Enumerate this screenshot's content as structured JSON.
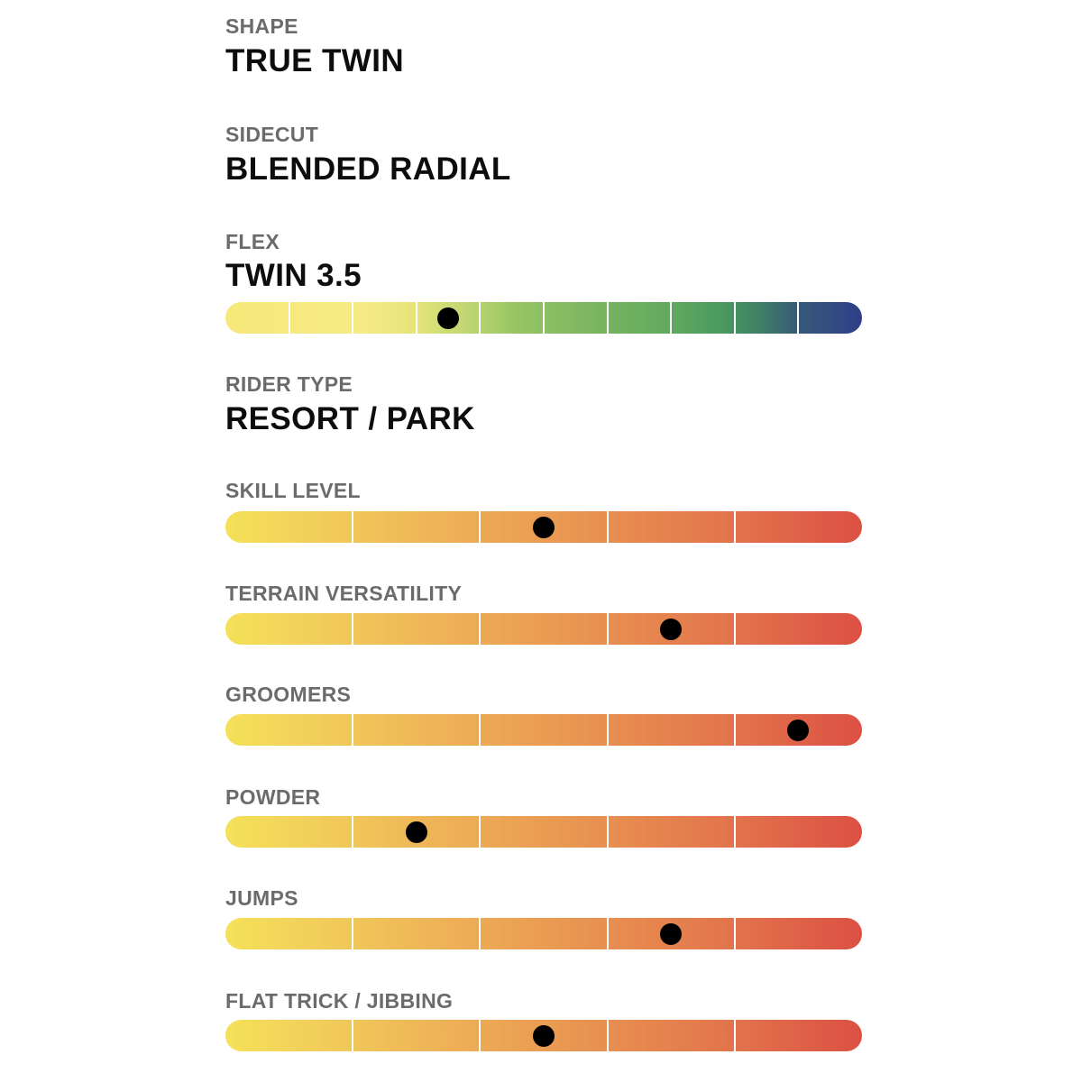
{
  "shape": {
    "label": "SHAPE",
    "value": "TRUE TWIN"
  },
  "sidecut": {
    "label": "SIDECUT",
    "value": "BLENDED RADIAL"
  },
  "flex": {
    "label": "FLEX",
    "value": "TWIN 3.5",
    "segments": 10,
    "position_fraction": 0.35,
    "colors": {
      "start": "#f6e87a",
      "mid": "#60a95f",
      "end": "#2f3f88"
    }
  },
  "rider_type": {
    "label": "RIDER TYPE",
    "value": "RESORT / PARK"
  },
  "ratings_scale": {
    "segments": 5,
    "colors": {
      "start": "#f5e159",
      "end": "#dc5043"
    }
  },
  "ratings": [
    {
      "label": "SKILL LEVEL",
      "position_fraction": 0.5
    },
    {
      "label": "TERRAIN VERSATILITY",
      "position_fraction": 0.7
    },
    {
      "label": "GROOMERS",
      "position_fraction": 0.9
    },
    {
      "label": "POWDER",
      "position_fraction": 0.3
    },
    {
      "label": "JUMPS",
      "position_fraction": 0.7
    },
    {
      "label": "FLAT TRICK / JIBBING",
      "position_fraction": 0.5
    }
  ]
}
